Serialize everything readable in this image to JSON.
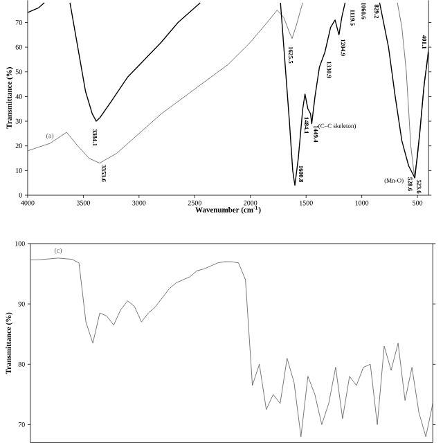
{
  "chart_data": [
    {
      "type": "line",
      "xlabel": "Wavenumber (cm$^{-1}$)",
      "ylabel": "Transmittance (%)",
      "xlim": [
        4000,
        400
      ],
      "ylim": [
        0,
        79
      ],
      "xticks": [
        4000,
        3500,
        3000,
        2500,
        2000,
        1500,
        1000,
        500
      ],
      "yticks": [
        0,
        10,
        20,
        30,
        40,
        50,
        60,
        70
      ],
      "series": [
        {
          "name": "(a)",
          "color": "#555555",
          "x": [
            4000,
            3800,
            3650,
            3550,
            3450,
            3353.6,
            3200,
            3000,
            2800,
            2500,
            2200,
            2000,
            1850,
            1760,
            1700,
            1650,
            1625.5,
            1580,
            1550,
            1530,
            1200,
            680,
            640,
            600,
            560,
            528.6,
            500,
            450,
            401
          ],
          "values": [
            18,
            21,
            25.5,
            20,
            15,
            13,
            17,
            25,
            33,
            43,
            53,
            62,
            70,
            75,
            72,
            66,
            63.5,
            70,
            75,
            78,
            null,
            78,
            68,
            50,
            20,
            8,
            15,
            40,
            60
          ]
        },
        {
          "color": "#000000",
          "x": [
            4000,
            3900,
            3850,
            3700,
            3620,
            3550,
            3480,
            3420,
            3384.1,
            3350,
            3250,
            3100,
            2950,
            2800,
            2650,
            2450,
            2000,
            1730,
            1700,
            1650,
            1620,
            1600.8,
            1570,
            1530,
            1510,
            1484.1,
            1460,
            1449.4,
            1420,
            1380,
            1330.9,
            1280,
            1240,
            1204.9,
            1180,
            1150,
            1000,
            840,
            760,
            700,
            640,
            580,
            523.6,
            480,
            440,
            401.1
          ],
          "values": [
            74,
            76,
            78,
            null,
            78,
            60,
            42,
            33,
            30,
            31.5,
            38,
            48,
            55,
            62,
            70,
            78,
            null,
            78,
            60,
            30,
            10,
            4,
            15,
            35,
            41,
            35,
            33,
            29,
            40,
            52,
            58,
            68,
            71,
            65,
            72,
            78,
            null,
            78,
            60,
            40,
            22,
            12,
            7,
            25,
            45,
            58
          ]
        }
      ],
      "annotations": [
        {
          "text": "3384.1",
          "x": 3384.1,
          "y": 30
        },
        {
          "text": "3353.6",
          "x": 3353.6,
          "y": 13
        },
        {
          "text": "1625.5",
          "x": 1625.5,
          "y": 63.5
        },
        {
          "text": "1600.8",
          "x": 1600.8,
          "y": 4
        },
        {
          "text": "1484.1",
          "x": 1484.1,
          "y": 35
        },
        {
          "text": "1449.4",
          "x": 1449.4,
          "y": 29
        },
        {
          "text": "1330.9",
          "x": 1330.9,
          "y": 55
        },
        {
          "text": "1204.9",
          "x": 1204.9,
          "y": 64
        },
        {
          "text": "1119.5",
          "x": 1119.5,
          "y": 76
        },
        "1060.6",
        {
          "text": "829.2",
          "x": 829.2,
          "y": 78
        },
        {
          "text": "528.6",
          "x": 528.6,
          "y": 8
        },
        {
          "text": "523.6",
          "x": 523.6,
          "y": 7
        },
        {
          "text": "401.1",
          "x": 401.1,
          "y": 58
        },
        {
          "text": "(C–C skeleton)",
          "x": 1449.4,
          "y": 29
        },
        {
          "text": "(Mn-O)",
          "x": 528.6,
          "y": 8
        }
      ]
    },
    {
      "type": "line",
      "ylabel": "Transmittance (%)",
      "ylim": [
        67,
        100
      ],
      "yticks": [
        70,
        80,
        90,
        100
      ],
      "categories": [
        null,
        null,
        null,
        null,
        null,
        null,
        null,
        null,
        null,
        null,
        null,
        null,
        null,
        null,
        null,
        null,
        null,
        null,
        null,
        null,
        null,
        null,
        null,
        null,
        null,
        null,
        null,
        null,
        null,
        null,
        null,
        null,
        null,
        null,
        null,
        null,
        null,
        null,
        null,
        null,
        null,
        null,
        null,
        null,
        null,
        null,
        null,
        null,
        null,
        null,
        null,
        null,
        null,
        null,
        null,
        null,
        null,
        null,
        null
      ],
      "series": [
        {
          "name": "(c)",
          "color": "#555555",
          "values": [
            97.3,
            97.3,
            97.4,
            97.5,
            97.6,
            97.5,
            97.4,
            96.8,
            87,
            83.5,
            88.5,
            88,
            86.5,
            89,
            90.5,
            89.6,
            87,
            88.5,
            89.5,
            91,
            92.5,
            93.5,
            94,
            94.5,
            95.5,
            95.8,
            96.3,
            96.8,
            97,
            97,
            96.8,
            94,
            76.5,
            80,
            72.5,
            75,
            73.5,
            81,
            77,
            68,
            78,
            75,
            70,
            73.5,
            79.5,
            71,
            78,
            76.5,
            79.5,
            80,
            70,
            83,
            79,
            83.5,
            74,
            79.5,
            72,
            68,
            73.5
          ]
        }
      ]
    }
  ]
}
